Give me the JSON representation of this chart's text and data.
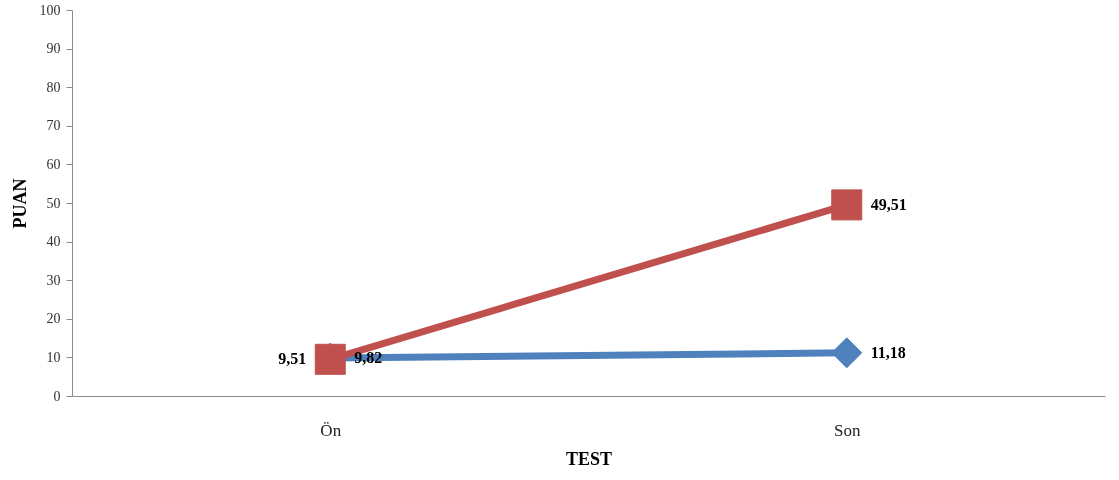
{
  "chart_data": {
    "type": "line",
    "xlabel": "TEST",
    "ylabel": "PUAN",
    "categories": [
      "Ön",
      "Son"
    ],
    "series": [
      {
        "color": "#4f81bd",
        "marker": "diamond",
        "values": [
          9.82,
          11.18
        ],
        "value_labels": [
          "9,82",
          "11,18"
        ]
      },
      {
        "color": "#c0504d",
        "marker": "square",
        "values": [
          9.51,
          49.51
        ],
        "value_labels": [
          "9,51",
          "49,51"
        ]
      }
    ],
    "ylim": [
      0,
      100
    ],
    "yticks": [
      0,
      10,
      20,
      30,
      40,
      50,
      60,
      70,
      80,
      90,
      100
    ]
  }
}
